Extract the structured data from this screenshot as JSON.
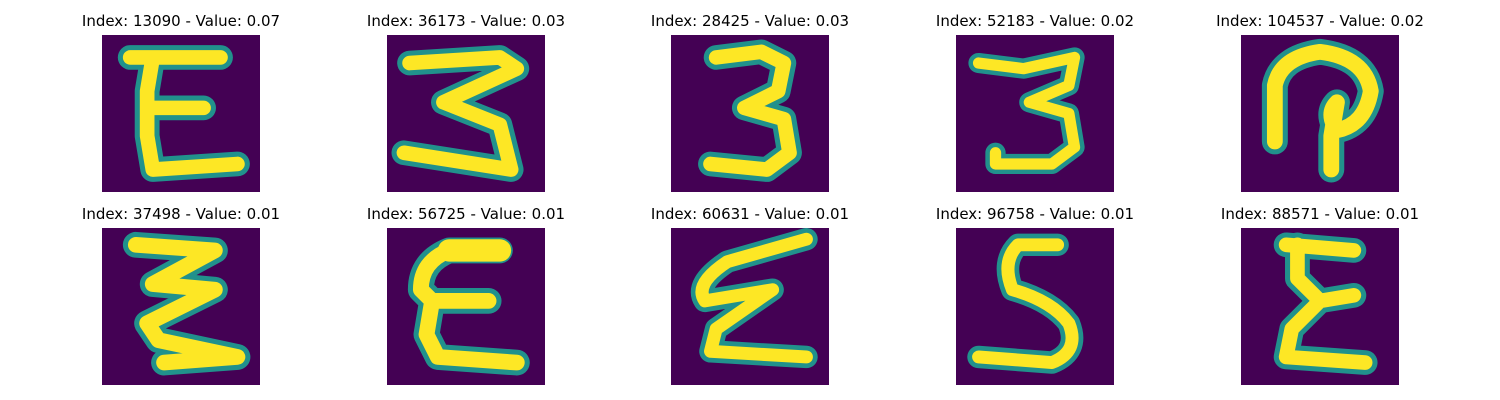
{
  "grid": {
    "items": [
      {
        "title": "Index: 13090 - Value: 0.07",
        "glyph": "E-upright"
      },
      {
        "title": "Index: 36173 - Value: 0.03",
        "glyph": "three-z"
      },
      {
        "title": "Index: 28425 - Value: 0.03",
        "glyph": "three"
      },
      {
        "title": "Index: 52183 - Value: 0.02",
        "glyph": "three-flat"
      },
      {
        "title": "Index: 104537 - Value: 0.02",
        "glyph": "loop"
      },
      {
        "title": "Index: 37498 - Value: 0.01",
        "glyph": "zigzag"
      },
      {
        "title": "Index: 56725 - Value: 0.01",
        "glyph": "epsilon"
      },
      {
        "title": "Index: 60631 - Value: 0.01",
        "glyph": "epsilon-slant"
      },
      {
        "title": "Index: 96758 - Value: 0.01",
        "glyph": "five"
      },
      {
        "title": "Index: 88571 - Value: 0.01",
        "glyph": "sigma-e"
      }
    ]
  },
  "colors": {
    "background": "#440154",
    "stroke_core": "#fde725",
    "stroke_edge": "#21918c"
  }
}
